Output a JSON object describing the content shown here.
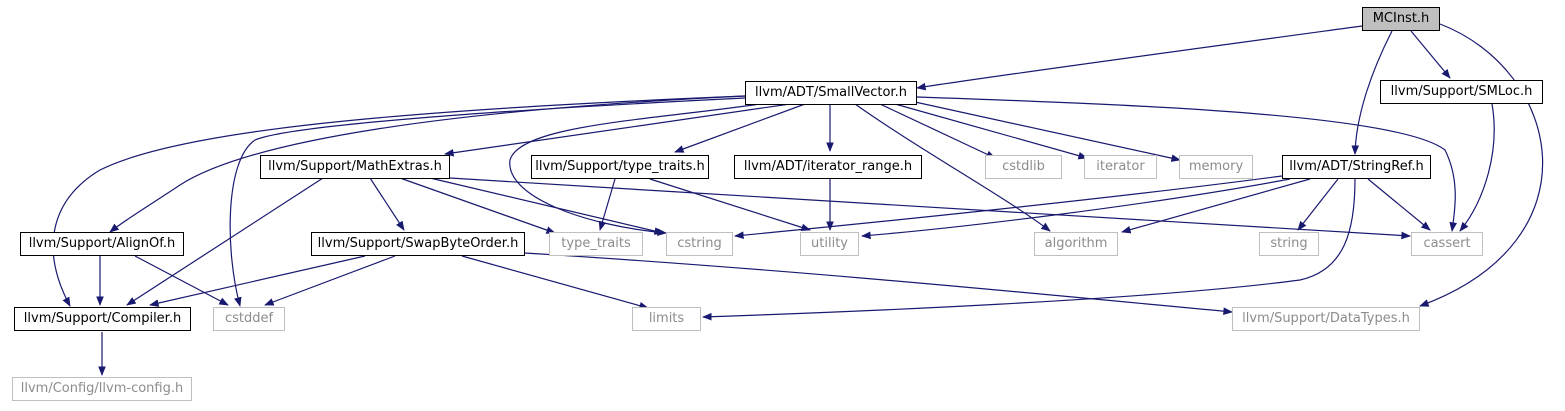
{
  "colors": {
    "edge": "#191970",
    "border_solid": "#000000",
    "border_ext": "#bfbfbf",
    "text_ext": "#8c8c8c",
    "root_fill": "#bfbfbf"
  },
  "nodes": {
    "mcinst": "MCInst.h",
    "smallvector": "llvm/ADT/SmallVector.h",
    "smloc": "llvm/Support/SMLoc.h",
    "mathextras": "llvm/Support/MathExtras.h",
    "type_traits_h": "llvm/Support/type_traits.h",
    "iterator_range": "llvm/ADT/iterator_range.h",
    "cstdlib": "cstdlib",
    "iterator": "iterator",
    "memory": "memory",
    "stringref": "llvm/ADT/StringRef.h",
    "alignof": "llvm/Support/AlignOf.h",
    "swapbyteorder": "llvm/Support/SwapByteOrder.h",
    "type_traits": "type_traits",
    "cstring": "cstring",
    "utility": "utility",
    "algorithm": "algorithm",
    "string": "string",
    "cassert": "cassert",
    "compiler": "llvm/Support/Compiler.h",
    "cstddef": "cstddef",
    "limits": "limits",
    "datatypes": "llvm/Support/DataTypes.h",
    "llvmconfig": "llvm/Config/llvm-config.h"
  }
}
